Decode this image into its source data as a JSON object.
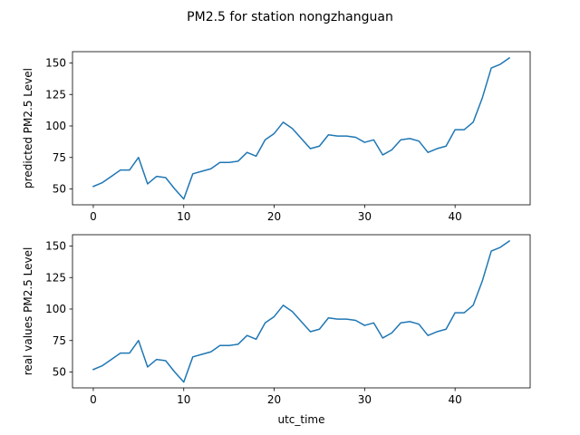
{
  "figure": {
    "title": "PM2.5 for station nongzhanguan"
  },
  "chart_data": [
    {
      "type": "line",
      "title": "",
      "xlabel": "",
      "ylabel": "predicted PM2.5 Level",
      "xlim": [
        -2.3,
        48.3
      ],
      "ylim": [
        37.4,
        159.0
      ],
      "x_ticks": [
        0,
        10,
        20,
        30,
        40
      ],
      "y_ticks": [
        50,
        75,
        100,
        125,
        150
      ],
      "grid": false,
      "color": "#1f77b4",
      "series": [
        {
          "x": [
            0,
            1,
            2,
            3,
            4,
            5,
            6,
            7,
            8,
            9,
            10,
            11,
            12,
            13,
            14,
            15,
            16,
            17,
            18,
            19,
            20,
            21,
            22,
            23,
            24,
            25,
            26,
            27,
            28,
            29,
            30,
            31,
            32,
            33,
            34,
            35,
            36,
            37,
            38,
            39,
            40,
            41,
            42,
            43,
            44,
            45,
            46
          ],
          "values": [
            52,
            55,
            60,
            65,
            65,
            75,
            54,
            60,
            59,
            50,
            42,
            62,
            64,
            66,
            71,
            71,
            72,
            79,
            76,
            89,
            94,
            103,
            98,
            90,
            82,
            84,
            93,
            92,
            92,
            91,
            87,
            89,
            77,
            81,
            89,
            90,
            88,
            79,
            82,
            84,
            97,
            97,
            103,
            122,
            146,
            149,
            154
          ]
        }
      ]
    },
    {
      "type": "line",
      "title": "",
      "xlabel": "utc_time",
      "ylabel": "real values PM2.5 Level",
      "xlim": [
        -2.3,
        48.3
      ],
      "ylim": [
        37.4,
        159.0
      ],
      "x_ticks": [
        0,
        10,
        20,
        30,
        40
      ],
      "y_ticks": [
        50,
        75,
        100,
        125,
        150
      ],
      "grid": false,
      "color": "#1f77b4",
      "series": [
        {
          "x": [
            0,
            1,
            2,
            3,
            4,
            5,
            6,
            7,
            8,
            9,
            10,
            11,
            12,
            13,
            14,
            15,
            16,
            17,
            18,
            19,
            20,
            21,
            22,
            23,
            24,
            25,
            26,
            27,
            28,
            29,
            30,
            31,
            32,
            33,
            34,
            35,
            36,
            37,
            38,
            39,
            40,
            41,
            42,
            43,
            44,
            45,
            46
          ],
          "values": [
            52,
            55,
            60,
            65,
            65,
            75,
            54,
            60,
            59,
            50,
            42,
            62,
            64,
            66,
            71,
            71,
            72,
            79,
            76,
            89,
            94,
            103,
            98,
            90,
            82,
            84,
            93,
            92,
            92,
            91,
            87,
            89,
            77,
            81,
            89,
            90,
            88,
            79,
            82,
            84,
            97,
            97,
            103,
            122,
            146,
            149,
            154
          ]
        }
      ]
    }
  ]
}
